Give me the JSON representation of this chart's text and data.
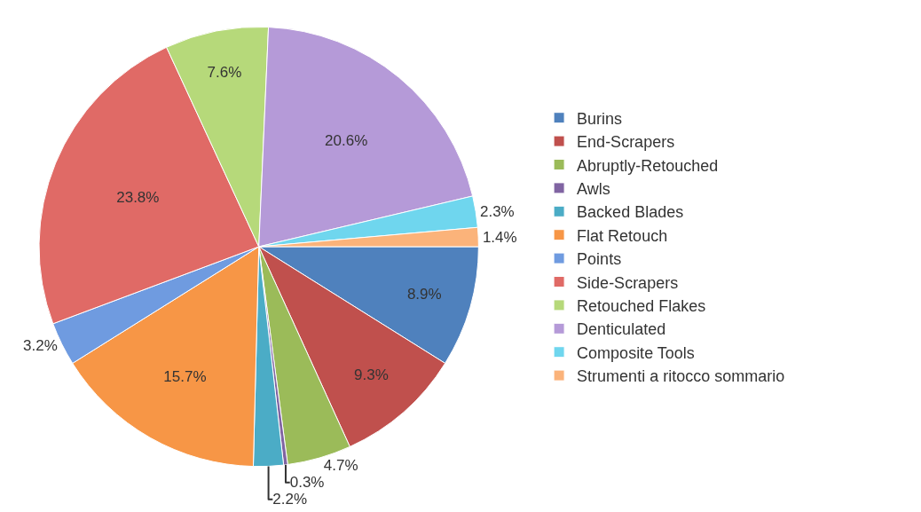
{
  "chart_data": {
    "type": "pie",
    "categories": [
      "Burins",
      "End-Scrapers",
      "Abruptly-Retouched",
      "Awls",
      "Backed Blades",
      "Flat Retouch",
      "Points",
      "Side-Scrapers",
      "Retouched Flakes",
      "Denticulated",
      "Composite Tools",
      "Strumenti a ritocco sommario"
    ],
    "values": [
      8.9,
      9.3,
      4.7,
      0.3,
      2.2,
      15.7,
      3.2,
      23.8,
      7.6,
      20.6,
      2.3,
      1.4
    ],
    "value_labels": [
      "8.9%",
      "9.3%",
      "4.7%",
      "0.3%",
      "2.2%",
      "15.7%",
      "3.2%",
      "23.8%",
      "7.6%",
      "20.6%",
      "2.3%",
      "1.4%"
    ],
    "colors": [
      "#4f81bd",
      "#c0504d",
      "#9bbb59",
      "#8064a2",
      "#4bacc6",
      "#f79646",
      "#6f9be0",
      "#e06a66",
      "#b6d97a",
      "#b59ad8",
      "#6fd6ee",
      "#fbb37a"
    ],
    "legend": "right"
  }
}
